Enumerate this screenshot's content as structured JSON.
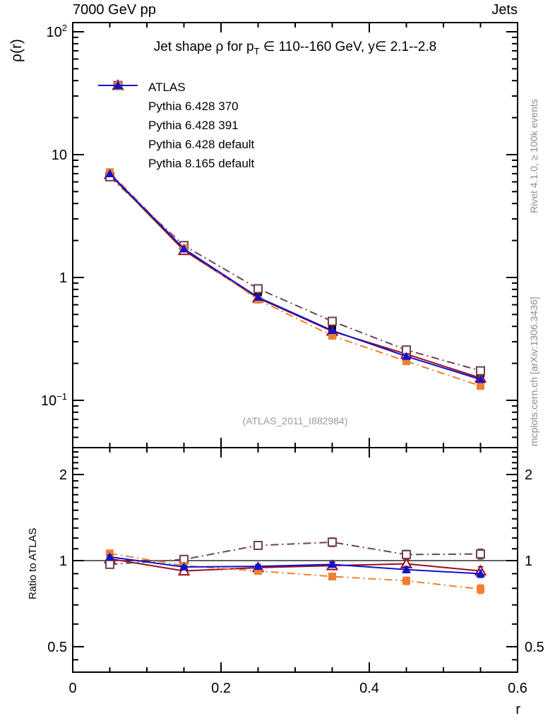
{
  "header": {
    "left": "7000 GeV pp",
    "right": "Jets"
  },
  "title_parts": {
    "part1": "Jet shape ρ for p",
    "sub": "T",
    "part2": " ∈ 110--160 GeV, y∈ 2.1--2.8"
  },
  "notes": {
    "rivet": "Rivet 4.1.0, ≥ 100k events",
    "mcplots": "mcplots.cern.ch [arXiv:1306.3436]",
    "analysis": "(ATLAS_2011_I882984)"
  },
  "chart_data": {
    "type": "line",
    "title": "Jet shape ρ for pT ∈ 110--160 GeV, y∈ 2.1--2.8",
    "xlabel": "r",
    "ylabel_main": "ρ(r)",
    "ylabel_ratio": "Ratio to ATLAS",
    "x": [
      0.05,
      0.15,
      0.25,
      0.35,
      0.45,
      0.55
    ],
    "xlim": [
      0,
      0.6
    ],
    "x_major_ticks": [
      0,
      0.2,
      0.4,
      0.6
    ],
    "x_minor_step": 0.05,
    "main_axis": {
      "scale": "log",
      "ylim": [
        0.041,
        119
      ]
    },
    "ratio_axis": {
      "scale": "log",
      "ylim": [
        0.41,
        2.48
      ]
    },
    "main_yticks": [
      {
        "v": 100,
        "base": "10",
        "exp": "2"
      },
      {
        "v": 10,
        "base": "10",
        "exp": ""
      },
      {
        "v": 1,
        "base": "1",
        "exp": ""
      },
      {
        "v": 0.1,
        "base": "10",
        "exp": "−1"
      }
    ],
    "ratio_yticks": [
      {
        "v": 2,
        "label": "2"
      },
      {
        "v": 1,
        "label": "1"
      },
      {
        "v": 0.5,
        "label": "0.5"
      }
    ],
    "x_tick_labels": [
      {
        "v": 0,
        "label": "0"
      },
      {
        "v": 0.2,
        "label": "0.2"
      },
      {
        "v": 0.4,
        "label": "0.4"
      },
      {
        "v": 0.6,
        "label": "0.6"
      }
    ],
    "legend_position": "top-left-inside",
    "grid": false,
    "series": [
      {
        "name": "ATLAS",
        "color": "#000000",
        "marker": "square-filled",
        "line": "none",
        "values": [
          6.8,
          1.8,
          0.72,
          0.38,
          0.245,
          0.165
        ],
        "ratio": [
          1,
          1,
          1,
          1,
          1,
          1
        ],
        "ratio_err": [
          0,
          0,
          0,
          0,
          0,
          0
        ]
      },
      {
        "name": "Pythia 6.428 370",
        "color": "#9c0c1c",
        "marker": "triangle-open",
        "line": "solid",
        "values": [
          6.9,
          1.66,
          0.68,
          0.365,
          0.238,
          0.152
        ],
        "ratio": [
          1.015,
          0.92,
          0.945,
          0.96,
          0.975,
          0.92
        ],
        "ratio_err": [
          0.02,
          0.02,
          0.02,
          0.025,
          0.03,
          0.035
        ]
      },
      {
        "name": "Pythia 6.428 391",
        "color": "#6e4150",
        "marker": "square-open",
        "line": "dashdot",
        "values": [
          6.6,
          1.82,
          0.81,
          0.44,
          0.257,
          0.174
        ],
        "ratio": [
          0.97,
          1.01,
          1.13,
          1.16,
          1.05,
          1.055
        ],
        "ratio_err": [
          0.02,
          0.02,
          0.03,
          0.035,
          0.035,
          0.04
        ]
      },
      {
        "name": "Pythia 6.428 default",
        "color": "#f08030",
        "marker": "square-filled",
        "line": "dashdot",
        "values": [
          7.2,
          1.73,
          0.66,
          0.335,
          0.208,
          0.131
        ],
        "ratio": [
          1.06,
          0.96,
          0.92,
          0.88,
          0.85,
          0.795
        ],
        "ratio_err": [
          0.02,
          0.015,
          0.02,
          0.025,
          0.03,
          0.035
        ]
      },
      {
        "name": "Pythia 8.165 default",
        "color": "#1212cc",
        "marker": "triangle-filled",
        "line": "solid",
        "values": [
          7.0,
          1.71,
          0.69,
          0.37,
          0.228,
          0.148
        ],
        "ratio": [
          1.03,
          0.95,
          0.955,
          0.97,
          0.93,
          0.9
        ],
        "ratio_err": [
          0.015,
          0.012,
          0.015,
          0.02,
          0.025,
          0.03
        ]
      }
    ]
  }
}
